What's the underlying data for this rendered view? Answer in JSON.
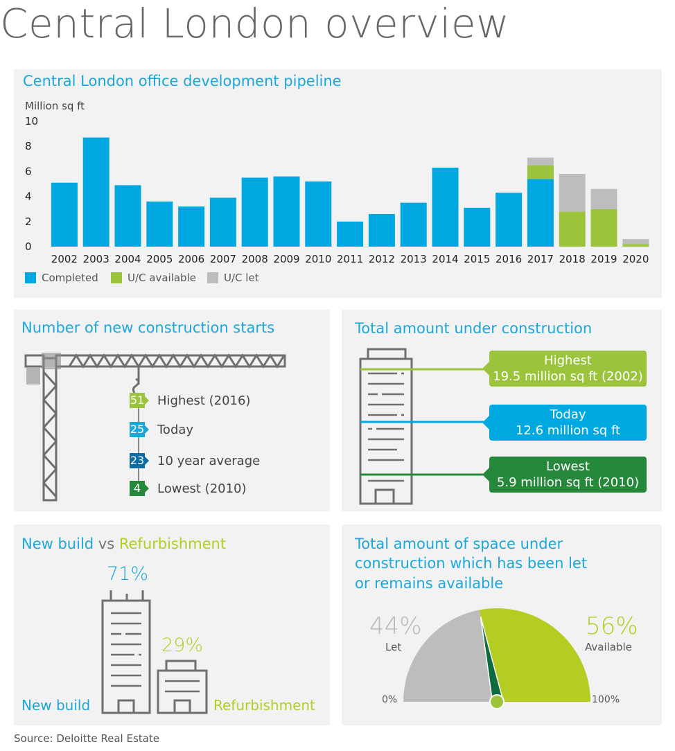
{
  "page_title": "Central London overview",
  "source": "Source: Deloitte Real Estate",
  "colors": {
    "completed": "#00a8e1",
    "uc_available": "#9bc43c",
    "uc_let": "#bdbdbd",
    "title_blue": "#1aa7d9",
    "lime": "#b5cc22",
    "dark_blue": "#0d6aa3",
    "dark_green": "#26883b",
    "navy_green": "#0e6b3d"
  },
  "chart_data": {
    "type": "bar",
    "title": "Central London office development pipeline",
    "ylabel": "Million sq ft",
    "ylim": [
      0,
      10
    ],
    "yticks": [
      0,
      2,
      4,
      6,
      8,
      10
    ],
    "stacked": true,
    "categories": [
      "2002",
      "2003",
      "2004",
      "2005",
      "2006",
      "2007",
      "2008",
      "2009",
      "2010",
      "2011",
      "2012",
      "2013",
      "2014",
      "2015",
      "2016",
      "2017",
      "2018",
      "2019",
      "2020"
    ],
    "series": [
      {
        "name": "Completed",
        "values": [
          5.1,
          8.7,
          4.9,
          3.6,
          3.2,
          3.9,
          5.5,
          5.6,
          5.2,
          2.0,
          2.6,
          3.5,
          6.3,
          3.1,
          4.3,
          5.4,
          0,
          0,
          0
        ]
      },
      {
        "name": "U/C available",
        "values": [
          0,
          0,
          0,
          0,
          0,
          0,
          0,
          0,
          0,
          0,
          0,
          0,
          0,
          0,
          0,
          1.1,
          2.8,
          3.0,
          0.2
        ]
      },
      {
        "name": "U/C let",
        "values": [
          0,
          0,
          0,
          0,
          0,
          0,
          0,
          0,
          0,
          0,
          0,
          0,
          0,
          0,
          0,
          0.6,
          3.0,
          1.6,
          0.4
        ]
      }
    ],
    "legend": "bottom-left"
  },
  "construction_starts": {
    "title": "Number of new construction starts",
    "items": [
      {
        "value": "51",
        "label": "Highest (2016)",
        "color": "#9bc43c"
      },
      {
        "value": "25",
        "label": "Today",
        "color": "#1aa7d9"
      },
      {
        "value": "23",
        "label": "10 year average",
        "color": "#0d6aa3"
      },
      {
        "value": "4",
        "label": "Lowest (2010)",
        "color": "#26883b"
      }
    ]
  },
  "under_construction": {
    "title": "Total amount under construction",
    "items": [
      {
        "title": "Highest",
        "value": "19.5 million sq ft (2002)",
        "color": "#9bc43c"
      },
      {
        "title": "Today",
        "value": "12.6 million sq ft",
        "color": "#00a8e1"
      },
      {
        "title": "Lowest",
        "value": "5.9 million sq ft (2010)",
        "color": "#26883b"
      }
    ]
  },
  "newbuild": {
    "title_a": "New build",
    "title_vs": " vs ",
    "title_b": "Refurbishment",
    "newbuild_pct": "71%",
    "refurb_pct": "29%",
    "newbuild_label": "New build",
    "refurb_label": "Refurbishment"
  },
  "space_let": {
    "title_lines": [
      "Total amount of space under",
      "construction which has been let",
      "or remains available"
    ],
    "let_pct": "44%",
    "let_label": "Let",
    "available_pct": "56%",
    "available_label": "Available",
    "let_share": 0.44,
    "available_share": 0.56,
    "min_label": "0%",
    "max_label": "100%"
  }
}
